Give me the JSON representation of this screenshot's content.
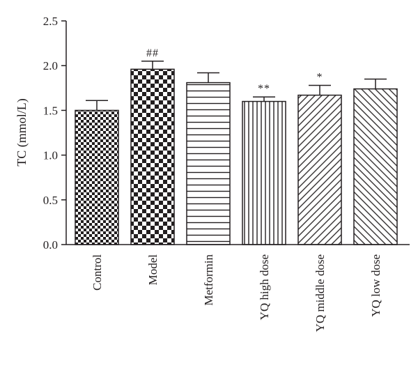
{
  "chart_data": {
    "type": "bar",
    "ylabel": "TC (mmol/L)",
    "xlabel": "",
    "ylim": [
      0,
      2.5
    ],
    "yticks": [
      0.0,
      0.5,
      1.0,
      1.5,
      2.0,
      2.5
    ],
    "ytick_labels": [
      "0.0",
      "0.5",
      "1.0",
      "1.5",
      "2.0",
      "2.5"
    ],
    "categories": [
      "Control",
      "Model",
      "Metformin",
      "YQ high dose",
      "YQ middle dose",
      "YQ low dose"
    ],
    "values": [
      1.5,
      1.96,
      1.81,
      1.6,
      1.67,
      1.74
    ],
    "errors": [
      0.11,
      0.09,
      0.11,
      0.05,
      0.11,
      0.11
    ],
    "annotations": [
      "",
      "##",
      "",
      "**",
      "*",
      ""
    ],
    "patterns": [
      "small-checker",
      "large-checker",
      "horizontal-lines",
      "vertical-lines",
      "diagonal-wide",
      "diagonal-narrow"
    ],
    "grid": false,
    "legend": "none",
    "colors": {
      "ink": "#231f20",
      "fill": "#ffffff"
    }
  }
}
